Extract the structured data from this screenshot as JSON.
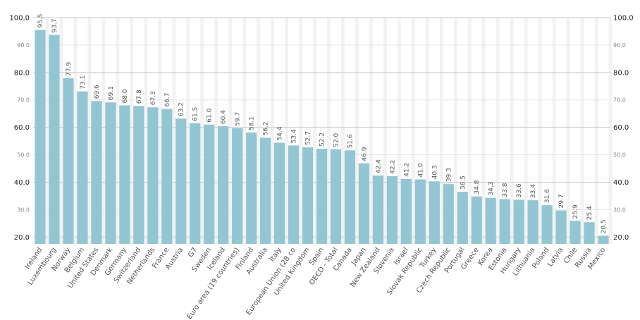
{
  "chart_data": {
    "type": "bar",
    "categories": [
      "Ireland",
      "Luxembourg",
      "Norway",
      "Belgium",
      "United States",
      "Denmark",
      "Germany",
      "Switzerland",
      "Netherlands",
      "France",
      "Austria",
      "G7",
      "Sweden",
      "Iceland",
      "Euro area (19 countries)",
      "Finland",
      "Australia",
      "Italy",
      "European Union (28 co",
      "United Kingdom",
      "Spain",
      "OECD - Total",
      "Canada",
      "Japan",
      "New Zealand",
      "Slovenia",
      "Israel",
      "Slovak Republic",
      "Turkey",
      "Czech Republic",
      "Portugal",
      "Greece",
      "Korea",
      "Estonia",
      "Hungary",
      "Lithuania",
      "Poland",
      "Latvia",
      "Chile",
      "Russia",
      "Mexico"
    ],
    "values": [
      95.5,
      93.7,
      77.9,
      73.1,
      69.6,
      69.1,
      68.0,
      67.8,
      67.3,
      66.7,
      63.2,
      61.5,
      61.0,
      60.4,
      59.7,
      58.1,
      56.2,
      54.4,
      53.4,
      52.7,
      52.2,
      52.0,
      51.6,
      46.9,
      42.4,
      42.2,
      41.2,
      41.0,
      40.3,
      39.3,
      36.5,
      34.8,
      34.3,
      33.8,
      33.6,
      33.4,
      31.6,
      29.7,
      25.9,
      25.4,
      20.5
    ],
    "value_labels": [
      "95.5",
      "93.7",
      "77.9",
      "73.1",
      "69.6",
      "69.1",
      "68.0",
      "67.8",
      "67.3",
      "66.7",
      "63.2",
      "61.5",
      "61.0",
      "60.4",
      "59.7",
      "58.1",
      "56.2",
      "54.4",
      "53.4",
      "52.7",
      "52.2",
      "52.0",
      "51.6",
      "46.9",
      "42.4",
      "42.2",
      "41.2",
      "41.0",
      "40.3",
      "39.3",
      "36.5",
      "34.8",
      "34.3",
      "33.8",
      "33.6",
      "33.4",
      "31.6",
      "29.7",
      "25.9",
      "25.4",
      "20.5"
    ],
    "title": "",
    "xlabel": "",
    "ylabel": "",
    "ylim": [
      17.5,
      100
    ],
    "major_ticks": [
      "20.0",
      "40.0",
      "60.0",
      "80.0",
      "100.0"
    ],
    "minor_ticks": [
      "30.0",
      "50.0",
      "70.0",
      "90.0"
    ],
    "grid": true,
    "legend": "none",
    "colors": {
      "bar": "#93c6d3",
      "stripe": "#f2f2f2",
      "grid_major": "#c8c8c8",
      "grid_minor": "#e6e6e6"
    }
  }
}
